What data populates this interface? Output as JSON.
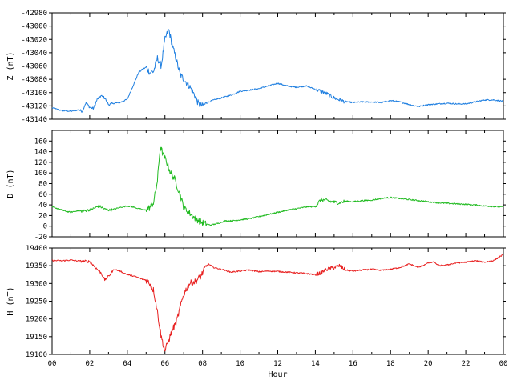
{
  "chart_data": [
    {
      "type": "line",
      "ylabel": "Z (nT)",
      "xlabel": "",
      "xlim": [
        0,
        24
      ],
      "ylim": [
        -43140,
        -42980
      ],
      "yticks": [
        -42980,
        -43000,
        -43020,
        -43040,
        -43060,
        -43080,
        -43100,
        -43120,
        -43140
      ],
      "grid": false,
      "series": [
        {
          "color": "#1f7fe0",
          "x": [
            0,
            0.5,
            1.0,
            1.4,
            1.6,
            1.8,
            2.0,
            2.2,
            2.4,
            2.6,
            2.8,
            3.0,
            3.3,
            3.6,
            4.0,
            4.3,
            4.6,
            4.8,
            5.0,
            5.2,
            5.4,
            5.6,
            5.8,
            6.0,
            6.2,
            6.4,
            6.6,
            6.8,
            7.0,
            7.3,
            7.6,
            7.8,
            8.0,
            8.2,
            8.5,
            9.0,
            9.5,
            10.0,
            10.5,
            11.0,
            11.5,
            12.0,
            12.5,
            13.0,
            13.5,
            14.0,
            14.5,
            15.0,
            15.5,
            16.0,
            16.5,
            17.0,
            17.5,
            18.0,
            18.5,
            19.0,
            19.5,
            20.0,
            20.5,
            21.0,
            21.5,
            22.0,
            22.5,
            23.0,
            23.5,
            24.0
          ],
          "y": [
            -43123,
            -43127,
            -43128,
            -43126,
            -43128,
            -43115,
            -43122,
            -43124,
            -43110,
            -43105,
            -43108,
            -43118,
            -43116,
            -43115,
            -43110,
            -43090,
            -43070,
            -43065,
            -43062,
            -43070,
            -43068,
            -43048,
            -43060,
            -43020,
            -43005,
            -43030,
            -43050,
            -43072,
            -43080,
            -43090,
            -43105,
            -43118,
            -43120,
            -43116,
            -43112,
            -43108,
            -43104,
            -43098,
            -43096,
            -43094,
            -43090,
            -43086,
            -43090,
            -43092,
            -43090,
            -43095,
            -43100,
            -43108,
            -43113,
            -43115,
            -43114,
            -43114,
            -43115,
            -43112,
            -43114,
            -43118,
            -43121,
            -43118,
            -43117,
            -43116,
            -43117,
            -43117,
            -43114,
            -43111,
            -43111,
            -43113
          ]
        }
      ]
    },
    {
      "type": "line",
      "ylabel": "D (nT)",
      "xlabel": "",
      "xlim": [
        0,
        24
      ],
      "ylim": [
        -20,
        180
      ],
      "yticks": [
        -20,
        0,
        20,
        40,
        60,
        80,
        100,
        120,
        140,
        160
      ],
      "grid": false,
      "series": [
        {
          "color": "#22bb22",
          "x": [
            0,
            0.3,
            0.6,
            1.0,
            1.3,
            1.6,
            1.9,
            2.2,
            2.5,
            2.8,
            3.1,
            3.4,
            3.7,
            4.0,
            4.3,
            4.6,
            4.9,
            5.2,
            5.4,
            5.6,
            5.75,
            5.9,
            6.1,
            6.3,
            6.5,
            6.8,
            7.0,
            7.3,
            7.6,
            7.9,
            8.1,
            8.4,
            8.8,
            9.2,
            9.6,
            10.0,
            10.5,
            11.0,
            11.5,
            12.0,
            12.5,
            13.0,
            13.5,
            14.0,
            14.3,
            14.6,
            15.0,
            15.3,
            15.6,
            16.0,
            16.5,
            17.0,
            17.5,
            18.0,
            18.5,
            19.0,
            19.5,
            20.0,
            20.5,
            21.0,
            21.5,
            22.0,
            22.5,
            23.0,
            23.5,
            24.0
          ],
          "y": [
            36,
            33,
            29,
            26,
            29,
            28,
            30,
            33,
            38,
            32,
            30,
            33,
            36,
            38,
            36,
            33,
            30,
            35,
            45,
            85,
            150,
            135,
            120,
            100,
            90,
            60,
            35,
            25,
            15,
            8,
            5,
            2,
            5,
            10,
            10,
            12,
            14,
            18,
            22,
            26,
            30,
            33,
            36,
            37,
            50,
            48,
            45,
            44,
            47,
            46,
            48,
            49,
            52,
            54,
            52,
            50,
            48,
            46,
            44,
            43,
            42,
            41,
            40,
            38,
            37,
            36
          ]
        }
      ]
    },
    {
      "type": "line",
      "ylabel": "H (nT)",
      "xlabel": "Hour",
      "xlim": [
        0,
        24
      ],
      "ylim": [
        19100,
        19400
      ],
      "yticks": [
        19100,
        19150,
        19200,
        19250,
        19300,
        19350,
        19400
      ],
      "xticks": [
        "00",
        "02",
        "04",
        "06",
        "08",
        "10",
        "12",
        "14",
        "16",
        "18",
        "20",
        "22",
        "00"
      ],
      "grid": false,
      "series": [
        {
          "color": "#e82020",
          "x": [
            0,
            0.5,
            1.0,
            1.5,
            2.0,
            2.3,
            2.6,
            2.8,
            3.0,
            3.3,
            3.6,
            4.0,
            4.4,
            4.8,
            5.0,
            5.2,
            5.4,
            5.6,
            5.8,
            6.0,
            6.2,
            6.4,
            6.6,
            6.8,
            7.0,
            7.3,
            7.6,
            7.9,
            8.1,
            8.3,
            8.6,
            9.0,
            9.5,
            10.0,
            10.5,
            11.0,
            11.5,
            12.0,
            12.5,
            13.0,
            13.5,
            14.0,
            14.3,
            14.6,
            15.0,
            15.3,
            15.6,
            16.0,
            16.5,
            17.0,
            17.5,
            18.0,
            18.5,
            19.0,
            19.5,
            20.0,
            20.3,
            20.6,
            21.0,
            21.5,
            22.0,
            22.5,
            23.0,
            23.5,
            24.0
          ],
          "y": [
            19365,
            19364,
            19366,
            19363,
            19362,
            19345,
            19330,
            19310,
            19320,
            19340,
            19335,
            19325,
            19320,
            19312,
            19310,
            19300,
            19280,
            19220,
            19150,
            19110,
            19140,
            19170,
            19190,
            19230,
            19270,
            19300,
            19305,
            19320,
            19340,
            19355,
            19345,
            19340,
            19332,
            19335,
            19338,
            19333,
            19335,
            19334,
            19332,
            19330,
            19328,
            19325,
            19330,
            19340,
            19345,
            19350,
            19338,
            19335,
            19338,
            19340,
            19337,
            19340,
            19345,
            19355,
            19345,
            19358,
            19360,
            19350,
            19352,
            19358,
            19360,
            19364,
            19360,
            19365,
            19382
          ]
        }
      ]
    }
  ]
}
